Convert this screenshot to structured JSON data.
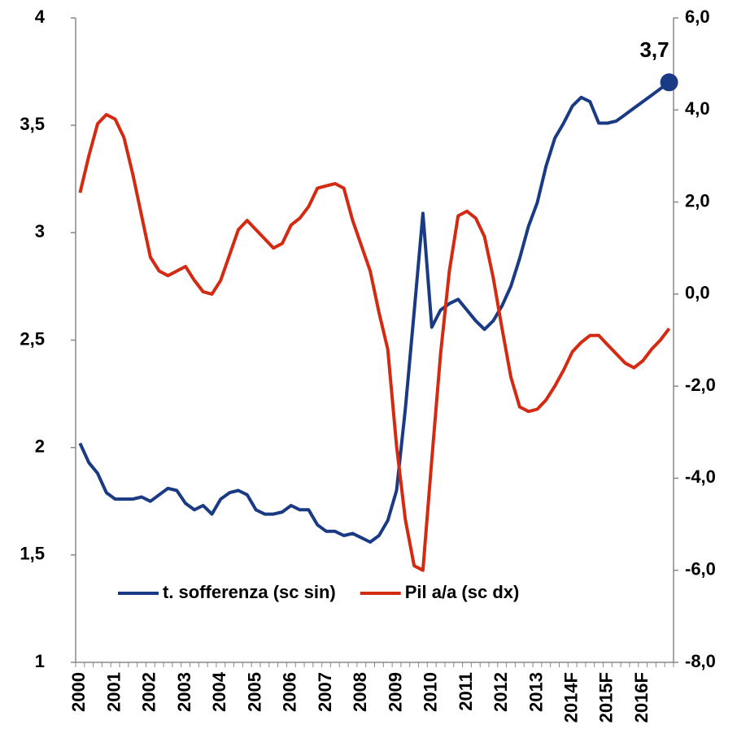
{
  "chart_data": {
    "type": "line",
    "categories": [
      "2000",
      null,
      null,
      null,
      "2001",
      null,
      null,
      null,
      "2002",
      null,
      null,
      null,
      "2003",
      null,
      null,
      null,
      "2004",
      null,
      null,
      null,
      "2005",
      null,
      null,
      null,
      "2006",
      null,
      null,
      null,
      "2007",
      null,
      null,
      null,
      "2008",
      null,
      null,
      null,
      "2009",
      null,
      null,
      null,
      "2010",
      null,
      null,
      null,
      "2011",
      null,
      null,
      null,
      "2012",
      null,
      null,
      null,
      "2013",
      null,
      null,
      null,
      "2014F",
      null,
      null,
      null,
      "2015F",
      null,
      null,
      null,
      "2016F",
      null,
      null,
      null
    ],
    "series": [
      {
        "name": "t. sofferenza (sc sin)",
        "color": "#1a3a84",
        "axis": "y",
        "values": [
          2.02,
          1.93,
          1.88,
          1.79,
          1.76,
          1.76,
          1.76,
          1.77,
          1.75,
          1.78,
          1.81,
          1.8,
          1.74,
          1.71,
          1.73,
          1.69,
          1.76,
          1.79,
          1.8,
          1.78,
          1.71,
          1.69,
          1.69,
          1.7,
          1.73,
          1.71,
          1.71,
          1.64,
          1.61,
          1.61,
          1.59,
          1.6,
          1.58,
          1.56,
          1.59,
          1.66,
          1.8,
          2.18,
          2.63,
          3.09,
          2.56,
          2.64,
          2.67,
          2.69,
          2.64,
          2.59,
          2.55,
          2.59,
          2.66,
          2.75,
          2.88,
          3.03,
          3.14,
          3.31,
          3.44,
          3.51,
          3.59,
          3.63,
          3.61,
          3.51,
          3.51,
          3.52,
          3.55,
          3.58,
          3.61,
          3.64,
          3.67,
          3.7
        ]
      },
      {
        "name": "Pil a/a (sc dx)",
        "color": "#d42a12",
        "axis": "y2",
        "values": [
          2.2,
          3.0,
          3.7,
          3.9,
          3.8,
          3.4,
          2.6,
          1.7,
          0.8,
          0.5,
          0.4,
          0.5,
          0.6,
          0.3,
          0.05,
          0.0,
          0.3,
          0.85,
          1.4,
          1.6,
          1.4,
          1.2,
          1.0,
          1.1,
          1.5,
          1.65,
          1.9,
          2.3,
          2.35,
          2.4,
          2.3,
          1.6,
          1.05,
          0.5,
          -0.4,
          -1.2,
          -3.3,
          -4.9,
          -5.9,
          -6.0,
          -3.6,
          -1.3,
          0.5,
          1.7,
          1.8,
          1.65,
          1.25,
          0.35,
          -0.75,
          -1.8,
          -2.45,
          -2.55,
          -2.5,
          -2.3,
          -2.0,
          -1.65,
          -1.25,
          -1.05,
          -0.9,
          -0.9,
          -1.1,
          -1.3,
          -1.5,
          -1.6,
          -1.45,
          -1.2,
          -1.0,
          -0.75
        ]
      }
    ],
    "annotation": "3,7",
    "ylim": [
      1,
      4
    ],
    "yticks": [
      1,
      {
        "value": 1.5,
        "label": "1,5"
      },
      2,
      {
        "value": 2.5,
        "label": "2,5"
      },
      3,
      {
        "value": 3.5,
        "label": "3,5"
      },
      4
    ],
    "y2lim": [
      -8,
      6
    ],
    "y2ticks": [
      {
        "value": -8,
        "label": "-8,0"
      },
      {
        "value": -6,
        "label": "-6,0"
      },
      {
        "value": -4,
        "label": "-4,0"
      },
      {
        "value": -2,
        "label": "-2,0"
      },
      {
        "value": 0,
        "label": "0,0"
      },
      {
        "value": 2,
        "label": "2,0"
      },
      {
        "value": 4,
        "label": "4,0"
      },
      {
        "value": 6,
        "label": "6,0"
      }
    ],
    "legend": "bottom"
  }
}
